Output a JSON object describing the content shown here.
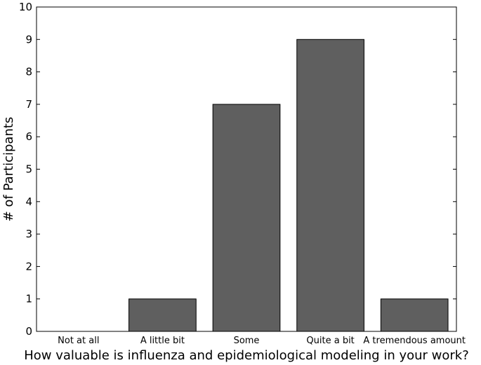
{
  "chart_data": {
    "type": "bar",
    "title": "",
    "xlabel": "How valuable is influenza and epidemiological modeling in your work?",
    "ylabel": "# of Participants",
    "categories": [
      "Not at all",
      "A little bit",
      "Some",
      "Quite a bit",
      "A tremendous amount"
    ],
    "values": [
      0,
      1,
      7,
      9,
      1
    ],
    "ylim": [
      0,
      10
    ],
    "yticks": [
      "0",
      "1",
      "2",
      "3",
      "4",
      "5",
      "6",
      "7",
      "8",
      "9",
      "10"
    ],
    "bar_color": "#5f5f5f",
    "edge_color": "#000000",
    "grid": false,
    "legend": "none"
  }
}
